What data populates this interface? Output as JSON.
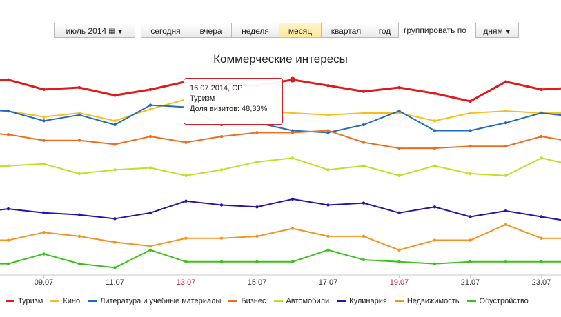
{
  "toolbar": {
    "period_label": "июль 2014",
    "buttons": [
      "сегодня",
      "вчера",
      "неделя",
      "месяц",
      "квартал",
      "год"
    ],
    "active_index": 3,
    "group_label": "группировать по",
    "group_value": "дням"
  },
  "tooltip": {
    "date": "16.07.2014, СР",
    "series": "Туризм",
    "value_text": "Доля визитов: 48,33%"
  },
  "chart_data": {
    "type": "line",
    "title": "Коммерческие интересы",
    "x": [
      "07.07",
      "08.07",
      "09.07",
      "10.07",
      "11.07",
      "12.07",
      "13.07",
      "14.07",
      "15.07",
      "16.07",
      "17.07",
      "18.07",
      "19.07",
      "20.07",
      "21.07",
      "22.07",
      "23.07",
      "24.07"
    ],
    "x_tick_labels": [
      "09.07",
      "11.07",
      "13.07",
      "15.07",
      "17.07",
      "19.07",
      "21.07",
      "23.07"
    ],
    "weekend_ticks": [
      "13.07",
      "19.07"
    ],
    "ylim": [
      0,
      100
    ],
    "grid": false,
    "legend_position": "bottom",
    "series": [
      {
        "name": "Туризм",
        "color": "#e01a1a",
        "values": [
          48,
          48,
          43,
          44,
          40,
          43,
          47,
          46,
          45,
          48,
          45,
          42,
          44,
          41,
          37,
          47,
          43,
          44
        ]
      },
      {
        "name": "Кино",
        "color": "#f7bd1a",
        "values": [
          33,
          32,
          29,
          31,
          27,
          33,
          38,
          37,
          32,
          31,
          30,
          31,
          31,
          27,
          31,
          32,
          31,
          31
        ]
      },
      {
        "name": "Литература и учебные материалы",
        "color": "#1e6bc1",
        "values": [
          33,
          32,
          27,
          30,
          25,
          35,
          34,
          25,
          26,
          22,
          21,
          25,
          32,
          22,
          22,
          26,
          31,
          29
        ]
      },
      {
        "name": "Бизнес",
        "color": "#f16b1c",
        "values": [
          21,
          20,
          17,
          17,
          15,
          19,
          16,
          19,
          21,
          21,
          22,
          16,
          13,
          13,
          14,
          14,
          19,
          16
        ]
      },
      {
        "name": "Автомобили",
        "color": "#bfe024",
        "values": [
          3,
          4,
          5,
          0,
          2,
          3,
          -1,
          2,
          6,
          8,
          2,
          4,
          -1,
          4,
          0,
          -1,
          8,
          4
        ]
      },
      {
        "name": "Кулинария",
        "color": "#2b13a5",
        "values": [
          -20,
          -18,
          -20,
          -21,
          -23,
          -20,
          -14,
          -16,
          -17,
          -13,
          -16,
          -15,
          -20,
          -17,
          -22,
          -19,
          -22,
          -25
        ]
      },
      {
        "name": "Недвижимость",
        "color": "#f6921e",
        "values": [
          -34,
          -34,
          -30,
          -32,
          -35,
          -37,
          -33,
          -33,
          -32,
          -28,
          -32,
          -32,
          -39,
          -34,
          -34,
          -26,
          -33,
          -33
        ]
      },
      {
        "name": "Обустройство",
        "color": "#3cc11c",
        "values": [
          -46,
          -46,
          -41,
          -46,
          -48,
          -39,
          -45,
          -45,
          -45,
          -45,
          -39,
          -44,
          -45,
          -46,
          -45,
          -45,
          -45,
          -45
        ]
      }
    ],
    "highlight": {
      "series": "Туризм",
      "x": "16.07"
    }
  }
}
